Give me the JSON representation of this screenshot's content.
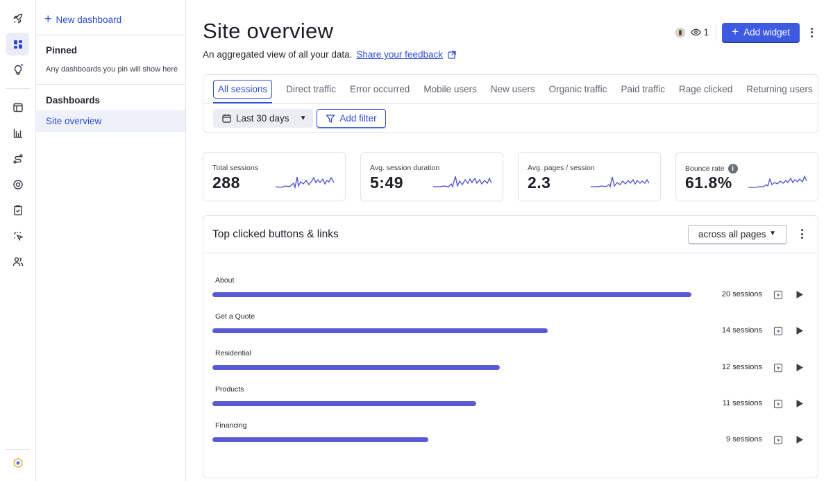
{
  "rail": {
    "items": [
      {
        "name": "rocket-icon"
      },
      {
        "name": "dashboard-icon",
        "active": true
      },
      {
        "name": "lightbulb-icon",
        "badge": true
      },
      {
        "name": "browser-window-icon"
      },
      {
        "name": "bar-chart-icon"
      },
      {
        "name": "route-icon"
      },
      {
        "name": "target-icon"
      },
      {
        "name": "checklist-icon"
      },
      {
        "name": "cursor-click-icon"
      },
      {
        "name": "people-icon"
      },
      {
        "name": "hexagon-logo-icon"
      }
    ]
  },
  "sidebar": {
    "new_dashboard": "New dashboard",
    "pinned_heading": "Pinned",
    "pinned_note": "Any dashboards you pin will show here",
    "dashboards_heading": "Dashboards",
    "items": [
      {
        "label": "Site overview",
        "active": true
      }
    ]
  },
  "header": {
    "title": "Site overview",
    "subtitle": "An aggregated view of all your data.",
    "feedback_link": "Share your feedback",
    "viewer_count": "1",
    "add_widget": "Add widget"
  },
  "filters": {
    "tabs": [
      "All sessions",
      "Direct traffic",
      "Error occurred",
      "Mobile users",
      "New users",
      "Organic traffic",
      "Paid traffic",
      "Rage clicked",
      "Returning users"
    ],
    "active_tab": "All sessions",
    "date_range": "Last 30 days",
    "add_filter": "Add filter"
  },
  "stats": [
    {
      "label": "Total sessions",
      "value": "288",
      "info": false
    },
    {
      "label": "Avg. session duration",
      "value": "5:49",
      "info": false
    },
    {
      "label": "Avg. pages / session",
      "value": "2.3",
      "info": false
    },
    {
      "label": "Bounce rate",
      "value": "61.8%",
      "info": true
    }
  ],
  "top_clicked": {
    "title": "Top clicked buttons & links",
    "scope": "across all pages",
    "rows": [
      {
        "label": "About",
        "sessions": 20,
        "count_text": "20 sessions"
      },
      {
        "label": "Get a Quote",
        "sessions": 14,
        "count_text": "14 sessions"
      },
      {
        "label": "Residential",
        "sessions": 12,
        "count_text": "12 sessions"
      },
      {
        "label": "Products",
        "sessions": 11,
        "count_text": "11 sessions"
      },
      {
        "label": "Financing",
        "sessions": 9,
        "count_text": "9 sessions"
      }
    ],
    "max_sessions": 20
  },
  "colors": {
    "accent": "#2f4cd6",
    "bar": "#5a5bd3",
    "primary_button": "#3d5ae0",
    "spark": "#4a4ec8"
  }
}
